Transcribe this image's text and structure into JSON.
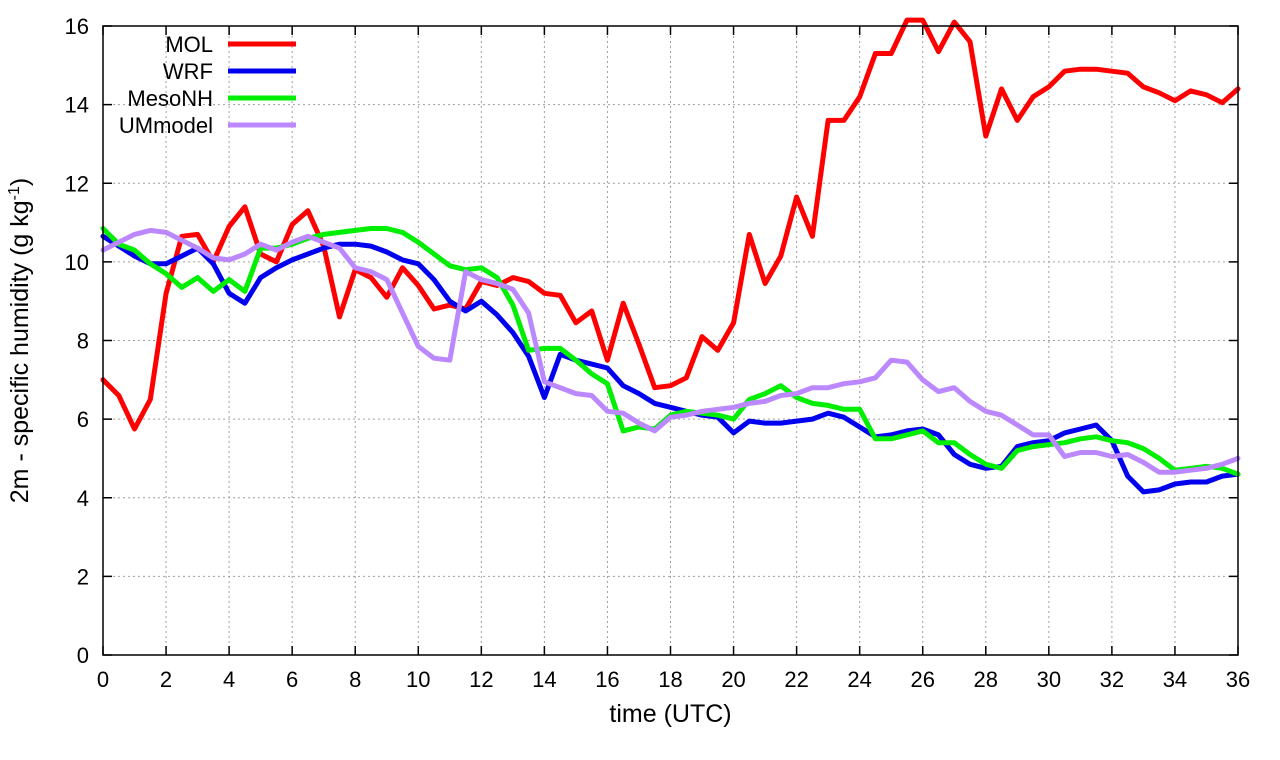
{
  "chart_data": {
    "type": "line",
    "xlabel": "time (UTC)",
    "ylabel": {
      "prefix": "2m - specific humidity (g kg",
      "sup": "-1",
      "suffix": ")"
    },
    "xlim": [
      0,
      36
    ],
    "ylim": [
      0,
      16
    ],
    "xticks": [
      0,
      2,
      4,
      6,
      8,
      10,
      12,
      14,
      16,
      18,
      20,
      22,
      24,
      26,
      28,
      30,
      32,
      34,
      36
    ],
    "yticks": [
      0,
      2,
      4,
      6,
      8,
      10,
      12,
      14,
      16
    ],
    "grid": true,
    "legend_position": "top-left",
    "series": [
      {
        "name": "MOL",
        "color": "#ff0000",
        "x": [
          0,
          0.5,
          1,
          1.5,
          2,
          2.5,
          3,
          3.5,
          4,
          4.5,
          5,
          5.5,
          6,
          6.5,
          7,
          7.5,
          8,
          8.5,
          9,
          9.5,
          10,
          10.5,
          11,
          11.5,
          12,
          12.5,
          13,
          13.5,
          14,
          14.5,
          15,
          15.5,
          16,
          16.5,
          17,
          17.5,
          18,
          18.5,
          19,
          19.5,
          20,
          20.5,
          21,
          21.5,
          22,
          22.5,
          23,
          23.5,
          24,
          24.5,
          25,
          25.5,
          26,
          26.5,
          27,
          27.5,
          28,
          28.5,
          29,
          29.5,
          30,
          30.5,
          31,
          31.5,
          32,
          32.5,
          33,
          33.5,
          34,
          34.5,
          35,
          35.5,
          36
        ],
        "y": [
          7.0,
          6.6,
          5.75,
          6.5,
          9.2,
          10.65,
          10.7,
          10.0,
          10.9,
          11.4,
          10.2,
          10.0,
          10.95,
          11.3,
          10.4,
          8.6,
          9.8,
          9.6,
          9.1,
          9.85,
          9.4,
          8.8,
          8.9,
          8.8,
          9.5,
          9.4,
          9.6,
          9.5,
          9.2,
          9.15,
          8.45,
          8.75,
          7.5,
          8.95,
          7.9,
          6.8,
          6.85,
          7.05,
          8.1,
          7.75,
          8.45,
          10.7,
          9.45,
          10.15,
          11.65,
          10.65,
          13.6,
          13.6,
          14.2,
          15.3,
          15.3,
          16.15,
          16.15,
          15.35,
          16.1,
          15.6,
          13.2,
          14.4,
          13.6,
          14.2,
          14.45,
          14.85,
          14.9,
          14.9,
          14.85,
          14.8,
          14.45,
          14.3,
          14.1,
          14.35,
          14.25,
          14.05,
          14.4
        ]
      },
      {
        "name": "WRF",
        "color": "#0000ee",
        "x": [
          0,
          0.5,
          1,
          1.5,
          2,
          2.5,
          3,
          3.5,
          4,
          4.5,
          5,
          5.5,
          6,
          6.5,
          7,
          7.5,
          8,
          8.5,
          9,
          9.5,
          10,
          10.5,
          11,
          11.5,
          12,
          12.5,
          13,
          13.5,
          14,
          14.5,
          15,
          15.5,
          16,
          16.5,
          17,
          17.5,
          18,
          18.5,
          19,
          19.5,
          20,
          20.5,
          21,
          21.5,
          22,
          22.5,
          23,
          23.5,
          24,
          24.5,
          25,
          25.5,
          26,
          26.5,
          27,
          27.5,
          28,
          28.5,
          29,
          29.5,
          30,
          30.5,
          31,
          31.5,
          32,
          32.5,
          33,
          33.5,
          34,
          34.5,
          35,
          35.5,
          36
        ],
        "y": [
          10.65,
          10.4,
          10.15,
          9.95,
          9.95,
          10.15,
          10.35,
          9.95,
          9.2,
          8.95,
          9.6,
          9.85,
          10.05,
          10.2,
          10.35,
          10.45,
          10.45,
          10.4,
          10.25,
          10.05,
          9.95,
          9.55,
          9.0,
          8.75,
          9.0,
          8.65,
          8.2,
          7.6,
          6.55,
          7.65,
          7.5,
          7.4,
          7.3,
          6.85,
          6.65,
          6.4,
          6.3,
          6.2,
          6.1,
          6.05,
          5.65,
          5.95,
          5.9,
          5.9,
          5.95,
          6.0,
          6.15,
          6.05,
          5.8,
          5.55,
          5.6,
          5.7,
          5.75,
          5.6,
          5.1,
          4.85,
          4.75,
          4.8,
          5.3,
          5.4,
          5.45,
          5.65,
          5.75,
          5.85,
          5.45,
          4.55,
          4.15,
          4.2,
          4.35,
          4.4,
          4.4,
          4.55,
          4.6
        ]
      },
      {
        "name": "MesoNH",
        "color": "#00ee00",
        "x": [
          0,
          0.5,
          1,
          1.5,
          2,
          2.5,
          3,
          3.5,
          4,
          4.5,
          5,
          5.5,
          6,
          6.5,
          7,
          7.5,
          8,
          8.5,
          9,
          9.5,
          10,
          10.5,
          11,
          11.5,
          12,
          12.5,
          13,
          13.5,
          14,
          14.5,
          15,
          15.5,
          16,
          16.5,
          17,
          17.5,
          18,
          18.5,
          19,
          19.5,
          20,
          20.5,
          21,
          21.5,
          22,
          22.5,
          23,
          23.5,
          24,
          24.5,
          25,
          25.5,
          26,
          26.5,
          27,
          27.5,
          28,
          28.5,
          29,
          29.5,
          30,
          30.5,
          31,
          31.5,
          32,
          32.5,
          33,
          33.5,
          34,
          34.5,
          35,
          35.5,
          36
        ],
        "y": [
          10.85,
          10.45,
          10.3,
          9.95,
          9.7,
          9.35,
          9.6,
          9.25,
          9.55,
          9.25,
          10.35,
          10.35,
          10.45,
          10.6,
          10.7,
          10.75,
          10.8,
          10.85,
          10.85,
          10.75,
          10.5,
          10.2,
          9.9,
          9.8,
          9.85,
          9.6,
          8.9,
          7.75,
          7.8,
          7.8,
          7.5,
          7.15,
          6.9,
          5.7,
          5.8,
          5.75,
          6.1,
          6.2,
          6.15,
          6.1,
          6.0,
          6.5,
          6.65,
          6.85,
          6.55,
          6.4,
          6.35,
          6.25,
          6.25,
          5.5,
          5.5,
          5.6,
          5.7,
          5.4,
          5.4,
          5.1,
          4.85,
          4.75,
          5.2,
          5.3,
          5.35,
          5.4,
          5.5,
          5.55,
          5.45,
          5.4,
          5.25,
          5.0,
          4.7,
          4.75,
          4.8,
          4.75,
          4.6
        ]
      },
      {
        "name": "UMmodel",
        "color": "#bb88ff",
        "x": [
          0,
          0.5,
          1,
          1.5,
          2,
          2.5,
          3,
          3.5,
          4,
          4.5,
          5,
          5.5,
          6,
          6.5,
          7,
          7.5,
          8,
          8.5,
          9,
          9.5,
          10,
          10.5,
          11,
          11.5,
          12,
          12.5,
          13,
          13.5,
          14,
          14.5,
          15,
          15.5,
          16,
          16.5,
          17,
          17.5,
          18,
          18.5,
          19,
          19.5,
          20,
          20.5,
          21,
          21.5,
          22,
          22.5,
          23,
          23.5,
          24,
          24.5,
          25,
          25.5,
          26,
          26.5,
          27,
          27.5,
          28,
          28.5,
          29,
          29.5,
          30,
          30.5,
          31,
          31.5,
          32,
          32.5,
          33,
          33.5,
          34,
          34.5,
          35,
          35.5,
          36
        ],
        "y": [
          10.3,
          10.5,
          10.7,
          10.8,
          10.75,
          10.55,
          10.35,
          10.1,
          10.05,
          10.2,
          10.45,
          10.3,
          10.5,
          10.65,
          10.5,
          10.35,
          9.85,
          9.75,
          9.55,
          8.7,
          7.85,
          7.55,
          7.5,
          9.75,
          9.55,
          9.45,
          9.3,
          8.7,
          6.95,
          6.8,
          6.65,
          6.6,
          6.2,
          6.15,
          5.9,
          5.7,
          6.05,
          6.1,
          6.2,
          6.25,
          6.3,
          6.4,
          6.45,
          6.6,
          6.65,
          6.8,
          6.8,
          6.9,
          6.95,
          7.05,
          7.5,
          7.45,
          7.0,
          6.7,
          6.8,
          6.45,
          6.2,
          6.1,
          5.85,
          5.6,
          5.6,
          5.05,
          5.15,
          5.15,
          5.05,
          5.1,
          4.9,
          4.65,
          4.65,
          4.7,
          4.75,
          4.85,
          5.0
        ]
      }
    ]
  }
}
